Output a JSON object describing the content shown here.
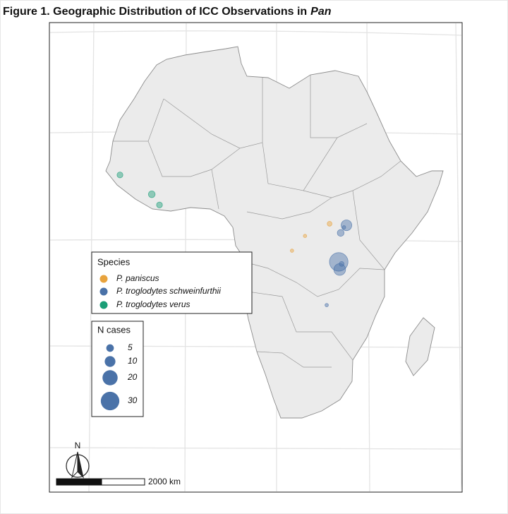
{
  "title": {
    "text": "Figure 1. Geographic Distribution of ICC Observations in",
    "italic": "Pan"
  },
  "species_legend": {
    "title": "Species",
    "items": [
      {
        "name": "P. paniscus",
        "color": "#E8A33D"
      },
      {
        "name": "P. troglodytes schweinfurthii",
        "color": "#4A72A8"
      },
      {
        "name": "P. troglodytes verus",
        "color": "#1A9E77"
      }
    ]
  },
  "size_legend": {
    "title": "N cases",
    "values": [
      5,
      10,
      20,
      30
    ]
  },
  "observations": [
    {
      "species": 2,
      "lon": -15.3,
      "lat": 13.3,
      "n": 3
    },
    {
      "species": 2,
      "lon": -8.7,
      "lat": 9.5,
      "n": 4
    },
    {
      "species": 2,
      "lon": -7.1,
      "lat": 7.4,
      "n": 3
    },
    {
      "species": 0,
      "lon": 28.2,
      "lat": 3.7,
      "n": 2
    },
    {
      "species": 0,
      "lon": 23.1,
      "lat": 1.3,
      "n": 1
    },
    {
      "species": 0,
      "lon": 20.4,
      "lat": -1.6,
      "n": 1
    },
    {
      "species": 1,
      "lon": 31.7,
      "lat": 3.4,
      "n": 10
    },
    {
      "species": 1,
      "lon": 31.2,
      "lat": 3.0,
      "n": 1
    },
    {
      "species": 1,
      "lon": 30.5,
      "lat": 1.9,
      "n": 4
    },
    {
      "species": 1,
      "lon": 30.1,
      "lat": -3.8,
      "n": 30
    },
    {
      "species": 1,
      "lon": 30.3,
      "lat": -5.3,
      "n": 12
    },
    {
      "species": 1,
      "lon": 30.7,
      "lat": -4.2,
      "n": 2
    },
    {
      "species": 1,
      "lon": 27.6,
      "lat": -12.3,
      "n": 1
    }
  ],
  "north_label": "N",
  "scale_bar": {
    "label": "2000 km"
  }
}
